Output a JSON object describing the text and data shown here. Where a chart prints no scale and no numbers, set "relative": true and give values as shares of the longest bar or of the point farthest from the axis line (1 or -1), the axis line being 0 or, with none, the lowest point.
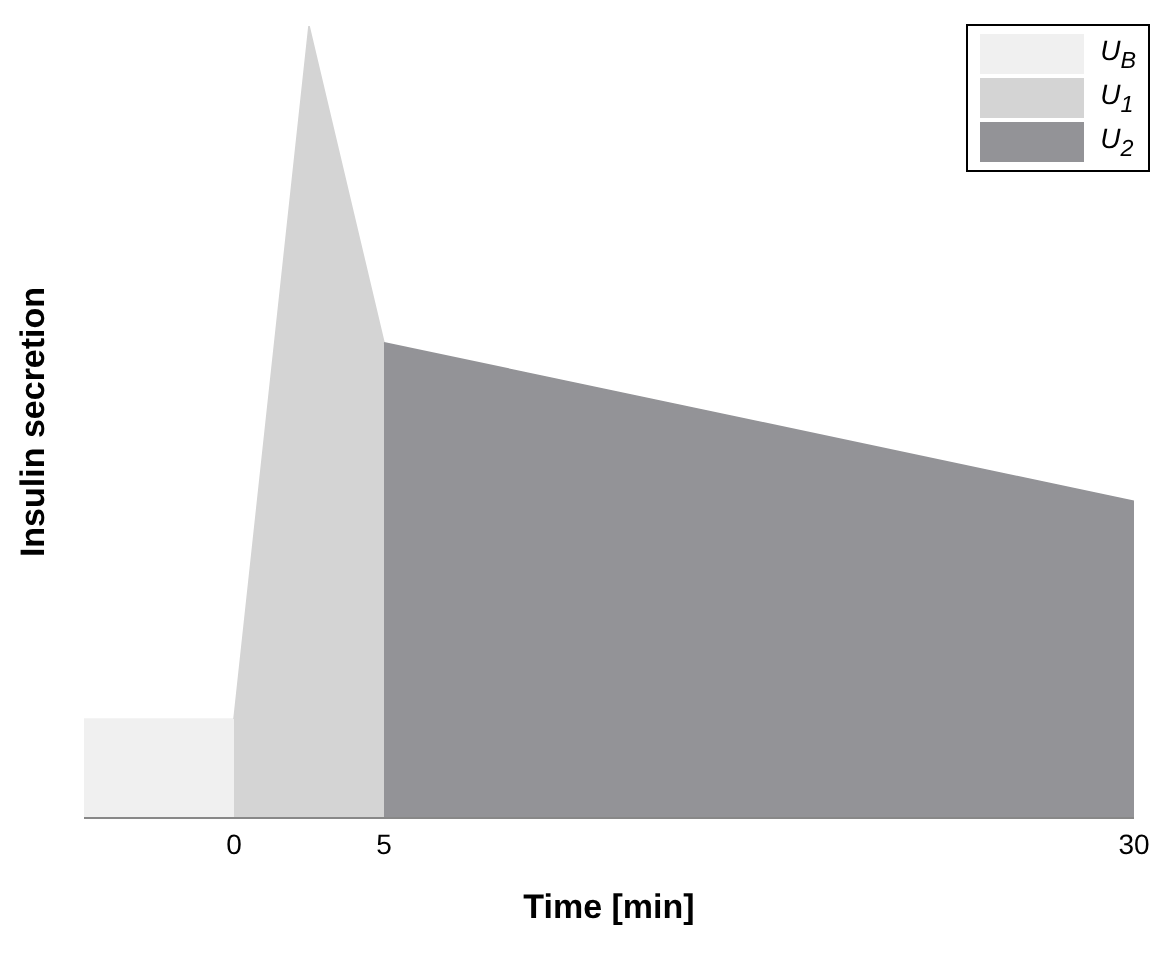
{
  "chart_data": {
    "type": "area",
    "xlabel": "Time [min]",
    "ylabel": "Insulin secretion",
    "relative": true,
    "xlim": [
      -5,
      30
    ],
    "xticks": [
      0,
      5,
      30
    ],
    "legend": "top right",
    "series": [
      {
        "name": "U$_{B}$",
        "color": "#f0f0f0",
        "x": [
          -5,
          0
        ],
        "values": [
          0.125,
          0.125
        ]
      },
      {
        "name": "U$_{1}$",
        "color": "#d4d4d4",
        "x": [
          0,
          2.5,
          5
        ],
        "values": [
          0.125,
          1,
          0.6
        ]
      },
      {
        "name": "U$_{2}$",
        "color": "#939397",
        "x": [
          5,
          30
        ],
        "values": [
          0.6,
          0.4
        ]
      }
    ]
  }
}
